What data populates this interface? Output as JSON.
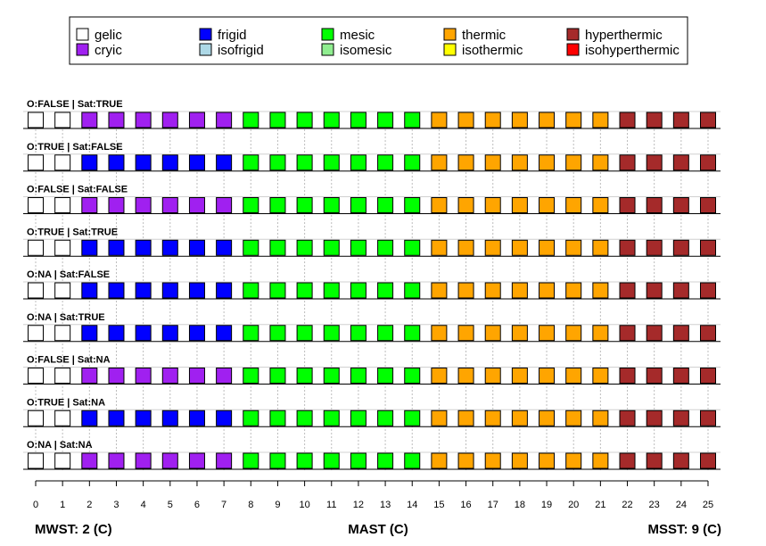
{
  "chart_data": {
    "type": "heatmap",
    "title": "",
    "xlabel": "MAST (C)",
    "x_ticks": [
      0,
      1,
      2,
      3,
      4,
      5,
      6,
      7,
      8,
      9,
      10,
      11,
      12,
      13,
      14,
      15,
      16,
      17,
      18,
      19,
      20,
      21,
      22,
      23,
      24,
      25
    ],
    "xlim": [
      0,
      25
    ],
    "annotations": {
      "left": "MWST: 2 (C)",
      "center": "MAST (C)",
      "right": "MSST: 9 (C)"
    },
    "legend": {
      "position": "top",
      "entries": [
        {
          "name": "gelic",
          "color": "#ffffff"
        },
        {
          "name": "frigid",
          "color": "#0000ff"
        },
        {
          "name": "mesic",
          "color": "#00ff00"
        },
        {
          "name": "thermic",
          "color": "#ffa500"
        },
        {
          "name": "hyperthermic",
          "color": "#a52a2a"
        },
        {
          "name": "cryic",
          "color": "#a020f0"
        },
        {
          "name": "isofrigid",
          "color": "#add8e6"
        },
        {
          "name": "isomesic",
          "color": "#90ee90"
        },
        {
          "name": "isothermic",
          "color": "#ffff00"
        },
        {
          "name": "isohyperthermic",
          "color": "#ff0000"
        }
      ]
    },
    "panels": [
      {
        "label": "O:FALSE | Sat:TRUE",
        "classes": [
          "gelic",
          "gelic",
          "cryic",
          "cryic",
          "cryic",
          "cryic",
          "cryic",
          "cryic",
          "mesic",
          "mesic",
          "mesic",
          "mesic",
          "mesic",
          "mesic",
          "mesic",
          "thermic",
          "thermic",
          "thermic",
          "thermic",
          "thermic",
          "thermic",
          "thermic",
          "hyperthermic",
          "hyperthermic",
          "hyperthermic",
          "hyperthermic"
        ]
      },
      {
        "label": "O:TRUE | Sat:FALSE",
        "classes": [
          "gelic",
          "gelic",
          "frigid",
          "frigid",
          "frigid",
          "frigid",
          "frigid",
          "frigid",
          "mesic",
          "mesic",
          "mesic",
          "mesic",
          "mesic",
          "mesic",
          "mesic",
          "thermic",
          "thermic",
          "thermic",
          "thermic",
          "thermic",
          "thermic",
          "thermic",
          "hyperthermic",
          "hyperthermic",
          "hyperthermic",
          "hyperthermic"
        ]
      },
      {
        "label": "O:FALSE | Sat:FALSE",
        "classes": [
          "gelic",
          "gelic",
          "cryic",
          "cryic",
          "cryic",
          "cryic",
          "cryic",
          "cryic",
          "mesic",
          "mesic",
          "mesic",
          "mesic",
          "mesic",
          "mesic",
          "mesic",
          "thermic",
          "thermic",
          "thermic",
          "thermic",
          "thermic",
          "thermic",
          "thermic",
          "hyperthermic",
          "hyperthermic",
          "hyperthermic",
          "hyperthermic"
        ]
      },
      {
        "label": "O:TRUE | Sat:TRUE",
        "classes": [
          "gelic",
          "gelic",
          "frigid",
          "frigid",
          "frigid",
          "frigid",
          "frigid",
          "frigid",
          "mesic",
          "mesic",
          "mesic",
          "mesic",
          "mesic",
          "mesic",
          "mesic",
          "thermic",
          "thermic",
          "thermic",
          "thermic",
          "thermic",
          "thermic",
          "thermic",
          "hyperthermic",
          "hyperthermic",
          "hyperthermic",
          "hyperthermic"
        ]
      },
      {
        "label": "O:NA | Sat:FALSE",
        "classes": [
          "gelic",
          "gelic",
          "frigid",
          "frigid",
          "frigid",
          "frigid",
          "frigid",
          "frigid",
          "mesic",
          "mesic",
          "mesic",
          "mesic",
          "mesic",
          "mesic",
          "mesic",
          "thermic",
          "thermic",
          "thermic",
          "thermic",
          "thermic",
          "thermic",
          "thermic",
          "hyperthermic",
          "hyperthermic",
          "hyperthermic",
          "hyperthermic"
        ]
      },
      {
        "label": "O:NA | Sat:TRUE",
        "classes": [
          "gelic",
          "gelic",
          "frigid",
          "frigid",
          "frigid",
          "frigid",
          "frigid",
          "frigid",
          "mesic",
          "mesic",
          "mesic",
          "mesic",
          "mesic",
          "mesic",
          "mesic",
          "thermic",
          "thermic",
          "thermic",
          "thermic",
          "thermic",
          "thermic",
          "thermic",
          "hyperthermic",
          "hyperthermic",
          "hyperthermic",
          "hyperthermic"
        ]
      },
      {
        "label": "O:FALSE | Sat:NA",
        "classes": [
          "gelic",
          "gelic",
          "cryic",
          "cryic",
          "cryic",
          "cryic",
          "cryic",
          "cryic",
          "mesic",
          "mesic",
          "mesic",
          "mesic",
          "mesic",
          "mesic",
          "mesic",
          "thermic",
          "thermic",
          "thermic",
          "thermic",
          "thermic",
          "thermic",
          "thermic",
          "hyperthermic",
          "hyperthermic",
          "hyperthermic",
          "hyperthermic"
        ]
      },
      {
        "label": "O:TRUE | Sat:NA",
        "classes": [
          "gelic",
          "gelic",
          "frigid",
          "frigid",
          "frigid",
          "frigid",
          "frigid",
          "frigid",
          "mesic",
          "mesic",
          "mesic",
          "mesic",
          "mesic",
          "mesic",
          "mesic",
          "thermic",
          "thermic",
          "thermic",
          "thermic",
          "thermic",
          "thermic",
          "thermic",
          "hyperthermic",
          "hyperthermic",
          "hyperthermic",
          "hyperthermic"
        ]
      },
      {
        "label": "O:NA | Sat:NA",
        "classes": [
          "gelic",
          "gelic",
          "cryic",
          "cryic",
          "cryic",
          "cryic",
          "cryic",
          "cryic",
          "mesic",
          "mesic",
          "mesic",
          "mesic",
          "mesic",
          "mesic",
          "mesic",
          "thermic",
          "thermic",
          "thermic",
          "thermic",
          "thermic",
          "thermic",
          "thermic",
          "hyperthermic",
          "hyperthermic",
          "hyperthermic",
          "hyperthermic"
        ]
      }
    ]
  }
}
